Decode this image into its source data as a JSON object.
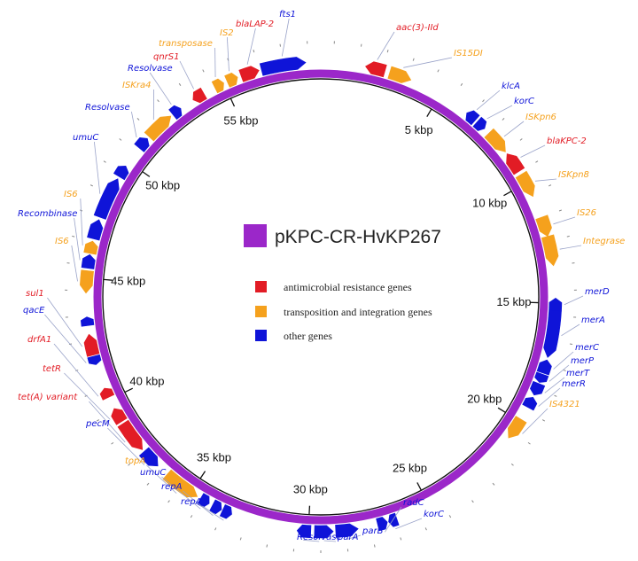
{
  "title": "pKPC-CR-HvKP267",
  "plasmid_length_kbp": 59,
  "colors": {
    "backbone": "#9b27c9",
    "resistance": "#e21c25",
    "transposition": "#f5a11d",
    "other": "#0f14d8",
    "title_box": "#9b27c9"
  },
  "legend": [
    {
      "label": "antimicrobial resistance genes",
      "category": "resistance"
    },
    {
      "label": "transposition and integration genes",
      "category": "transposition"
    },
    {
      "label": "other genes",
      "category": "other"
    }
  ],
  "kbp_labels": [
    {
      "label": "5 kbp",
      "pos": 5
    },
    {
      "label": "10 kbp",
      "pos": 10
    },
    {
      "label": "15 kbp",
      "pos": 15
    },
    {
      "label": "20 kbp",
      "pos": 20
    },
    {
      "label": "25 kbp",
      "pos": 25
    },
    {
      "label": "30 kbp",
      "pos": 30
    },
    {
      "label": "35 kbp",
      "pos": 35
    },
    {
      "label": "40 kbp",
      "pos": 40
    },
    {
      "label": "45 kbp",
      "pos": 45
    },
    {
      "label": "50 kbp",
      "pos": 50
    },
    {
      "label": "55 kbp",
      "pos": 55
    }
  ],
  "genes": [
    {
      "name": "aac(3)-IId",
      "start": 1.8,
      "end": 2.6,
      "category": "resistance",
      "strand": "reverse"
    },
    {
      "name": "IS15DI",
      "start": 2.8,
      "end": 3.7,
      "category": "transposition",
      "strand": "forward"
    },
    {
      "name": "klcA",
      "start": 6.3,
      "end": 6.75,
      "category": "other",
      "strand": "reverse"
    },
    {
      "name": "korC",
      "start": 6.85,
      "end": 7.25,
      "category": "other",
      "strand": "forward"
    },
    {
      "name": "ISKpn6",
      "start": 7.5,
      "end": 8.5,
      "category": "transposition",
      "strand": "forward"
    },
    {
      "name": "blaKPC-2",
      "start": 8.6,
      "end": 9.45,
      "category": "resistance",
      "strand": "reverse"
    },
    {
      "name": "ISKpn8",
      "start": 9.6,
      "end": 10.6,
      "category": "transposition",
      "strand": "forward"
    },
    {
      "name": "IS26",
      "start": 11.5,
      "end": 12.3,
      "category": "transposition",
      "strand": "forward"
    },
    {
      "name": "Integrase",
      "start": 12.3,
      "end": 13.5,
      "category": "transposition",
      "strand": "forward"
    },
    {
      "name": "merD",
      "start": 14.8,
      "end": 15.3,
      "category": "other",
      "strand": "reverse"
    },
    {
      "name": "merA",
      "start": 15.3,
      "end": 17.2,
      "category": "other",
      "strand": "forward"
    },
    {
      "name": "merC",
      "start": 17.3,
      "end": 17.85,
      "category": "other",
      "strand": "reverse"
    },
    {
      "name": "merP",
      "start": 17.9,
      "end": 18.25,
      "category": "other",
      "strand": "forward"
    },
    {
      "name": "merT",
      "start": 18.3,
      "end": 18.8,
      "category": "other",
      "strand": "forward"
    },
    {
      "name": "merR",
      "start": 18.9,
      "end": 19.35,
      "category": "other",
      "strand": "reverse"
    },
    {
      "name": "IS4321",
      "start": 19.9,
      "end": 20.8,
      "category": "transposition",
      "strand": "forward"
    },
    {
      "name": "korC",
      "start": 26.4,
      "end": 26.75,
      "category": "other",
      "strand": "forward"
    },
    {
      "name": "radC",
      "start": 26.8,
      "end": 27.2,
      "category": "other",
      "strand": "reverse"
    },
    {
      "name": "parB",
      "start": 28.0,
      "end": 28.9,
      "category": "other",
      "strand": "reverse"
    },
    {
      "name": "parA",
      "start": 29.0,
      "end": 29.75,
      "category": "other",
      "strand": "reverse"
    },
    {
      "name": "Resolvase",
      "start": 29.9,
      "end": 30.45,
      "category": "other",
      "strand": "forward"
    },
    {
      "name": "repA",
      "start": 33.15,
      "end": 33.55,
      "category": "other",
      "strand": "reverse"
    },
    {
      "name": "repA",
      "start": 33.6,
      "end": 34.0,
      "category": "other",
      "strand": "reverse"
    },
    {
      "name": "umuC",
      "start": 34.15,
      "end": 34.55,
      "category": "other",
      "strand": "reverse"
    },
    {
      "name": "topA",
      "start": 34.7,
      "end": 36.2,
      "category": "transposition",
      "strand": "reverse"
    },
    {
      "name": "pecM",
      "start": 36.7,
      "end": 37.5,
      "category": "other",
      "strand": "reverse"
    },
    {
      "name": "tet(A) variant",
      "start": 37.6,
      "end": 38.9,
      "category": "resistance",
      "strand": "reverse"
    },
    {
      "name": "tetR",
      "start": 39.0,
      "end": 39.6,
      "category": "resistance",
      "strand": "forward"
    },
    {
      "name": "drfA1",
      "start": 40.1,
      "end": 40.5,
      "category": "resistance",
      "strand": "forward"
    },
    {
      "name": "qacE",
      "start": 41.5,
      "end": 41.85,
      "category": "other",
      "strand": "reverse"
    },
    {
      "name": "sul1",
      "start": 41.9,
      "end": 42.75,
      "category": "resistance",
      "strand": "forward"
    },
    {
      "name": "",
      "start": 43.1,
      "end": 43.45,
      "category": "other",
      "strand": "forward"
    },
    {
      "name": "IS6",
      "start": 44.4,
      "end": 45.3,
      "category": "transposition",
      "strand": "reverse"
    },
    {
      "name": "Recombinase",
      "start": 45.4,
      "end": 45.95,
      "category": "other",
      "strand": "forward"
    },
    {
      "name": "IS6",
      "start": 46.0,
      "end": 46.5,
      "category": "transposition",
      "strand": "forward"
    },
    {
      "name": "",
      "start": 46.6,
      "end": 47.4,
      "category": "other",
      "strand": "forward"
    },
    {
      "name": "umuC",
      "start": 47.5,
      "end": 49.2,
      "category": "other",
      "strand": "forward"
    },
    {
      "name": "",
      "start": 49.3,
      "end": 49.8,
      "category": "other",
      "strand": "forward"
    },
    {
      "name": "Resolvase",
      "start": 50.7,
      "end": 51.2,
      "category": "other",
      "strand": "forward"
    },
    {
      "name": "ISKra4",
      "start": 51.3,
      "end": 52.5,
      "category": "transposition",
      "strand": "forward"
    },
    {
      "name": "Resolvase",
      "start": 52.6,
      "end": 53.0,
      "category": "other",
      "strand": "forward"
    },
    {
      "name": "qnrS1",
      "start": 53.6,
      "end": 54.1,
      "category": "resistance",
      "strand": "reverse"
    },
    {
      "name": "transposase",
      "start": 54.6,
      "end": 55.0,
      "category": "transposition",
      "strand": "forward"
    },
    {
      "name": "IS2",
      "start": 55.15,
      "end": 55.6,
      "category": "transposition",
      "strand": "forward"
    },
    {
      "name": "blaLAP-2",
      "start": 55.75,
      "end": 56.5,
      "category": "resistance",
      "strand": "forward"
    },
    {
      "name": "fts1",
      "start": 56.6,
      "end": 58.4,
      "category": "other",
      "strand": "forward"
    }
  ],
  "label_positions": [
    {
      "name": "aac(3)-IId",
      "lx": 447,
      "ly": 34,
      "anchor": "start",
      "gene": 0
    },
    {
      "name": "IS15DI",
      "lx": 512,
      "ly": 63,
      "anchor": "start",
      "gene": 1
    },
    {
      "name": "klcA",
      "lx": 566,
      "ly": 100,
      "anchor": "start",
      "gene": 2
    },
    {
      "name": "korC",
      "lx": 580,
      "ly": 117,
      "anchor": "start",
      "gene": 3
    },
    {
      "name": "ISKpn6",
      "lx": 593,
      "ly": 135,
      "anchor": "start",
      "gene": 4
    },
    {
      "name": "blaKPC-2",
      "lx": 617,
      "ly": 162,
      "anchor": "start",
      "gene": 5
    },
    {
      "name": "ISKpn8",
      "lx": 630,
      "ly": 200,
      "anchor": "start",
      "gene": 6
    },
    {
      "name": "IS26",
      "lx": 651,
      "ly": 243,
      "anchor": "start",
      "gene": 7
    },
    {
      "name": "Integrase",
      "lx": 658,
      "ly": 275,
      "anchor": "start",
      "gene": 8
    },
    {
      "name": "merD",
      "lx": 660,
      "ly": 332,
      "anchor": "start",
      "gene": 9
    },
    {
      "name": "merA",
      "lx": 656,
      "ly": 364,
      "anchor": "start",
      "gene": 10
    },
    {
      "name": "merC",
      "lx": 649,
      "ly": 395,
      "anchor": "start",
      "gene": 11
    },
    {
      "name": "merP",
      "lx": 644,
      "ly": 410,
      "anchor": "start",
      "gene": 12
    },
    {
      "name": "merT",
      "lx": 639,
      "ly": 424,
      "anchor": "start",
      "gene": 13
    },
    {
      "name": "merR",
      "lx": 634,
      "ly": 436,
      "anchor": "start",
      "gene": 14
    },
    {
      "name": "IS4321",
      "lx": 620,
      "ly": 459,
      "anchor": "start",
      "gene": 15
    },
    {
      "name": "korC",
      "lx": 478,
      "ly": 583,
      "anchor": "start",
      "gene": 16
    },
    {
      "name": "radC",
      "lx": 455,
      "ly": 570,
      "anchor": "start",
      "gene": 17
    },
    {
      "name": "parB",
      "lx": 409,
      "ly": 602,
      "anchor": "start",
      "gene": 18
    },
    {
      "name": "parA",
      "lx": 381,
      "ly": 609,
      "anchor": "start",
      "gene": 19
    },
    {
      "name": "Resolvase",
      "lx": 335,
      "ly": 609,
      "anchor": "start",
      "gene": 20
    },
    {
      "name": "repA",
      "lx": 204,
      "ly": 569,
      "anchor": "start",
      "gene": 21
    },
    {
      "name": "repA",
      "lx": 182,
      "ly": 552,
      "anchor": "start",
      "gene": 22
    },
    {
      "name": "umuC",
      "lx": 158,
      "ly": 536,
      "anchor": "start",
      "gene": 23
    },
    {
      "name": "topA",
      "lx": 141,
      "ly": 523,
      "anchor": "start",
      "gene": 24
    },
    {
      "name": "pecM",
      "lx": 97,
      "ly": 481,
      "anchor": "start",
      "gene": 25
    },
    {
      "name": "tet(A) variant",
      "lx": 20,
      "ly": 451,
      "anchor": "start",
      "gene": 26
    },
    {
      "name": "tetR",
      "lx": 48,
      "ly": 419,
      "anchor": "start",
      "gene": 27
    },
    {
      "name": "drfA1",
      "lx": 31,
      "ly": 386,
      "anchor": "start",
      "gene": 28
    },
    {
      "name": "qacE",
      "lx": 26,
      "ly": 353,
      "anchor": "start",
      "gene": 29
    },
    {
      "name": "sul1",
      "lx": 29,
      "ly": 334,
      "anchor": "start",
      "gene": 30
    },
    {
      "name": "IS6",
      "lx": 62,
      "ly": 275,
      "anchor": "start",
      "gene": 32
    },
    {
      "name": "Recombinase",
      "lx": 20,
      "ly": 244,
      "anchor": "start",
      "gene": 33
    },
    {
      "name": "IS6",
      "lx": 72,
      "ly": 222,
      "anchor": "start",
      "gene": 34
    },
    {
      "name": "umuC",
      "lx": 82,
      "ly": 158,
      "anchor": "start",
      "gene": 36
    },
    {
      "name": "Resolvase",
      "lx": 96,
      "ly": 124,
      "anchor": "start",
      "gene": 38
    },
    {
      "name": "ISKra4",
      "lx": 138,
      "ly": 99,
      "anchor": "start",
      "gene": 39
    },
    {
      "name": "Resolvase",
      "lx": 144,
      "ly": 80,
      "anchor": "start",
      "gene": 40
    },
    {
      "name": "qnrS1",
      "lx": 173,
      "ly": 67,
      "anchor": "start",
      "gene": 41
    },
    {
      "name": "transposase",
      "lx": 179,
      "ly": 52,
      "anchor": "start",
      "gene": 42
    },
    {
      "name": "IS2",
      "lx": 248,
      "ly": 40,
      "anchor": "start",
      "gene": 43
    },
    {
      "name": "blaLAP-2",
      "lx": 266,
      "ly": 30,
      "anchor": "start",
      "gene": 44
    },
    {
      "name": "fts1",
      "lx": 315,
      "ly": 19,
      "anchor": "start",
      "gene": 45
    }
  ]
}
